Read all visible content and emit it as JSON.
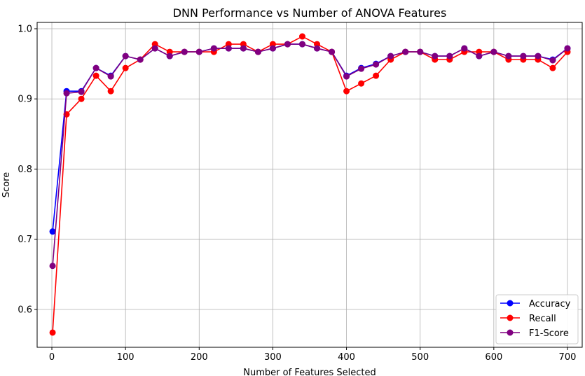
{
  "chart_data": {
    "type": "line",
    "title": "DNN Performance vs Number of ANOVA Features",
    "xlabel": "Number of Features Selected",
    "ylabel": "Score",
    "xlim": [
      -20,
      720
    ],
    "ylim": [
      0.546,
      1.009
    ],
    "xticks": [
      0,
      100,
      200,
      300,
      400,
      500,
      600,
      700
    ],
    "yticks": [
      0.6,
      0.7,
      0.8,
      0.9,
      1.0
    ],
    "ytick_labels": [
      "0.6",
      "0.7",
      "0.8",
      "0.9",
      "1.0"
    ],
    "grid": true,
    "legend_position": "bottom-right",
    "x": [
      1,
      20,
      40,
      60,
      80,
      100,
      120,
      140,
      160,
      180,
      200,
      220,
      240,
      260,
      280,
      300,
      320,
      340,
      360,
      380,
      400,
      420,
      440,
      460,
      480,
      500,
      520,
      540,
      560,
      580,
      600,
      620,
      640,
      660,
      680,
      700
    ],
    "series": [
      {
        "name": "Accuracy",
        "color": "#0000ff",
        "values": [
          0.711,
          0.911,
          0.911,
          0.944,
          0.933,
          0.961,
          0.956,
          0.972,
          0.961,
          0.967,
          0.967,
          0.972,
          0.972,
          0.972,
          0.967,
          0.972,
          0.978,
          0.978,
          0.972,
          0.967,
          0.933,
          0.944,
          0.95,
          0.961,
          0.967,
          0.967,
          0.961,
          0.961,
          0.972,
          0.961,
          0.967,
          0.961,
          0.961,
          0.961,
          0.956,
          0.972
        ]
      },
      {
        "name": "Recall",
        "color": "#ff0000",
        "values": [
          0.567,
          0.878,
          0.9,
          0.933,
          0.911,
          0.944,
          0.956,
          0.978,
          0.967,
          0.967,
          0.967,
          0.967,
          0.978,
          0.978,
          0.967,
          0.978,
          0.978,
          0.989,
          0.978,
          0.967,
          0.911,
          0.922,
          0.933,
          0.956,
          0.967,
          0.967,
          0.956,
          0.956,
          0.967,
          0.967,
          0.967,
          0.956,
          0.956,
          0.956,
          0.944,
          0.967
        ]
      },
      {
        "name": "F1-Score",
        "color": "#800080",
        "values": [
          0.662,
          0.908,
          0.91,
          0.944,
          0.932,
          0.961,
          0.956,
          0.972,
          0.961,
          0.967,
          0.967,
          0.972,
          0.972,
          0.972,
          0.967,
          0.972,
          0.978,
          0.978,
          0.972,
          0.967,
          0.932,
          0.943,
          0.949,
          0.961,
          0.967,
          0.967,
          0.961,
          0.961,
          0.972,
          0.961,
          0.967,
          0.961,
          0.961,
          0.961,
          0.955,
          0.972
        ]
      }
    ]
  }
}
